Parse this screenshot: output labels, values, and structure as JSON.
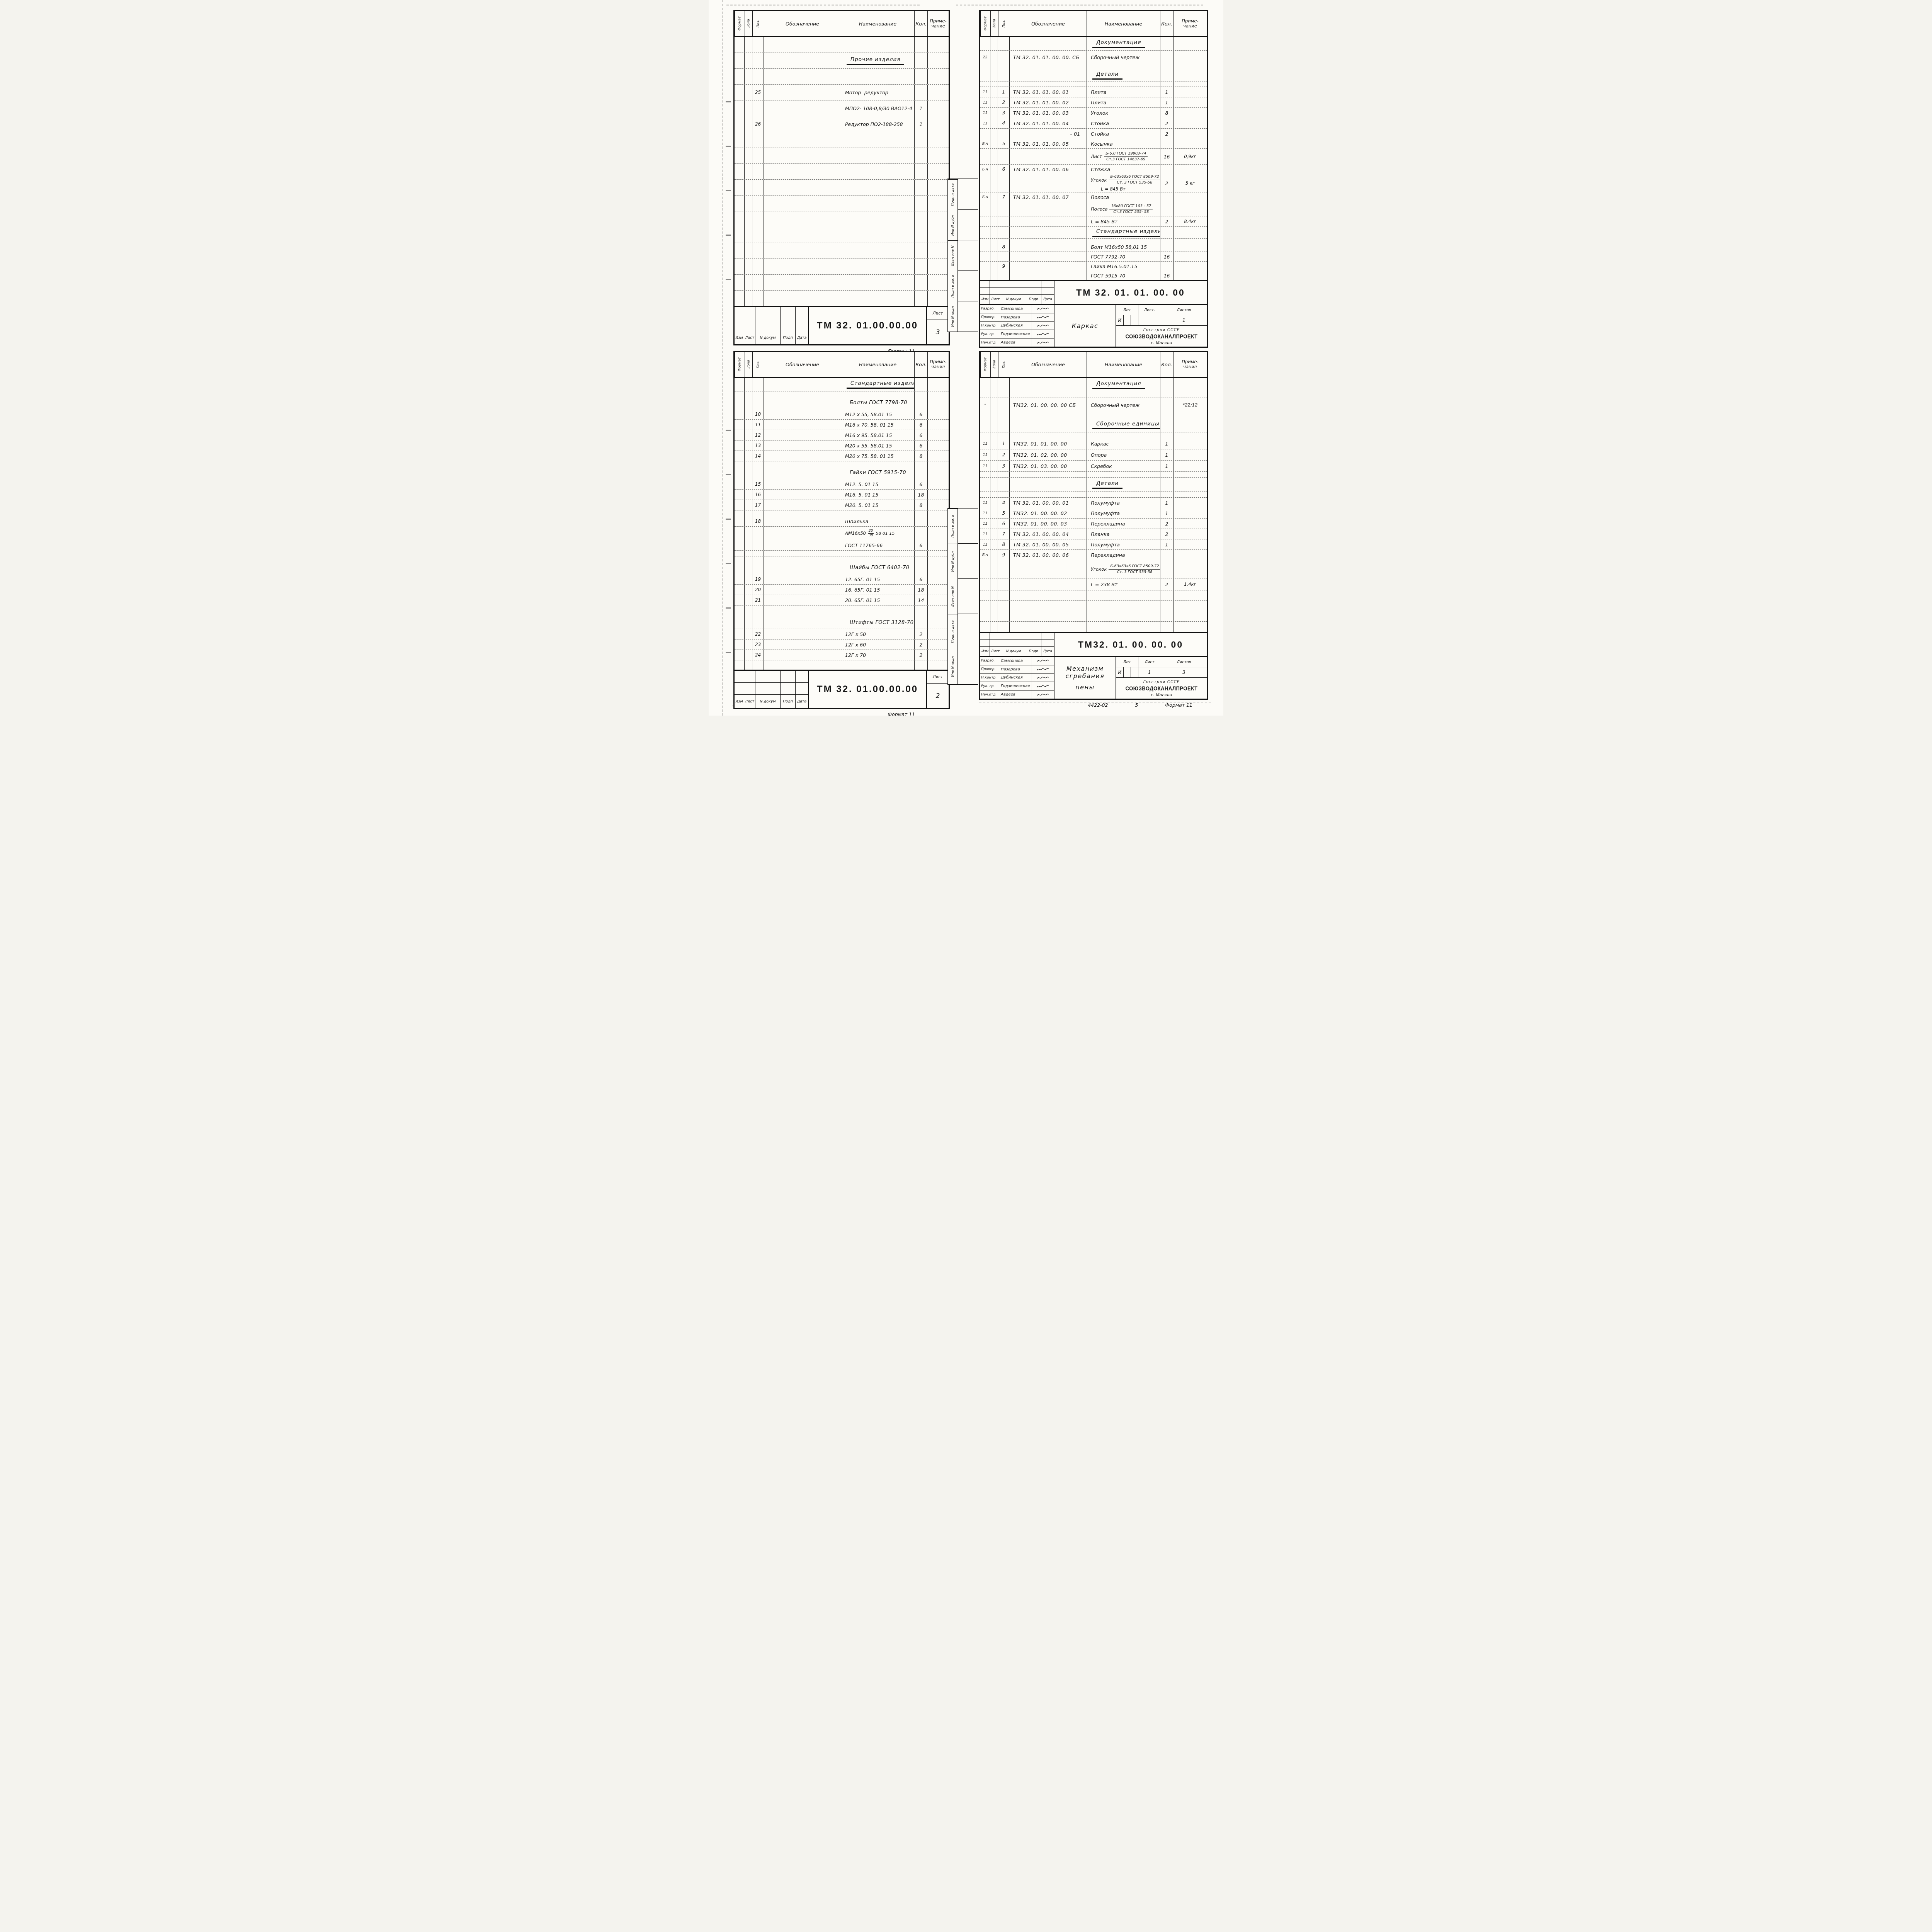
{
  "columns": {
    "format": "Формат",
    "zone": "Зона",
    "pos": "Поз.",
    "designation": "Обозначение",
    "name": "Наименование",
    "qty": "Кол.",
    "note_line1": "Приме-",
    "note_line2": "чание"
  },
  "tb_labels": {
    "izm": "Изм",
    "list": "Лист",
    "ndokum": "N докум",
    "podp": "Подп",
    "data": "Дата",
    "lit": "Лит",
    "list2": "Лист.",
    "listov": "Листов"
  },
  "org": {
    "line1": "Госстрои СССР",
    "stamp": "СОЮЗВОДОКАНАЛПРОЕКТ",
    "city": "г. Москва"
  },
  "sidebar": {
    "labels": [
      "Подп и дата",
      "Инв N дубл",
      "Взам инв N",
      "Подп и дата",
      "Инв N подл"
    ]
  },
  "tables": {
    "tl": {
      "doc_number": "ТМ 32. 01.00.00.00",
      "sheet": "3",
      "format_note": "Формат 11",
      "rows": [
        {
          "h": 40
        },
        {
          "h": 40,
          "sec": "u",
          "n": "Прочие изделия"
        },
        {
          "h": 40
        },
        {
          "h": 40,
          "p": "25",
          "n": "Мотор -редуктор"
        },
        {
          "h": 40,
          "n": "МПО2- 108-0,8/30 ВАО12-4",
          "k": "1"
        },
        {
          "h": 40,
          "p": "26",
          "n": "Редуктор ПО2-188-258",
          "k": "1"
        },
        {
          "h": 40
        },
        {
          "h": 40
        },
        {
          "h": 40
        },
        {
          "h": 40
        },
        {
          "h": 40
        },
        {
          "h": 40
        },
        {
          "h": 40
        },
        {
          "h": 40
        },
        {
          "h": 40
        },
        {
          "h": 40
        },
        {
          "h": 40
        }
      ]
    },
    "tr": {
      "doc_number": "ТМ 32. 01. 01. 00. 00",
      "title": "Каркас",
      "lit": "И",
      "sheet": "",
      "sheets": "1",
      "format_note": "Формат 11",
      "signers": [
        {
          "role": "Разраб.",
          "name": "Самсонова"
        },
        {
          "role": "Провер.",
          "name": "Назарова"
        },
        {
          "role": "Н.контр.",
          "name": "Дубинская"
        },
        {
          "role": "Рук. гр.",
          "name": "Годзишевская"
        },
        {
          "role": "Нач.отд.",
          "name": "Авдеев"
        }
      ],
      "rows": [
        {
          "h": 34,
          "sec": "u",
          "n": "Документация"
        },
        {
          "h": 34,
          "f": "22",
          "o": "ТМ 32. 01. 01. 00. 00. СБ",
          "n": "Сборочный чертеж"
        },
        {
          "h": 12
        },
        {
          "h": 32,
          "sec": "u",
          "n": "Детали"
        },
        {
          "h": 12
        },
        {
          "h": 26,
          "f": "11",
          "p": "1",
          "o": "ТМ 32. 01. 01. 00. 01",
          "n": "Плита",
          "k": "1"
        },
        {
          "h": 26,
          "f": "11",
          "p": "2",
          "o": "ТМ 32. 01. 01. 00. 02",
          "n": "Плита",
          "k": "1"
        },
        {
          "h": 26,
          "f": "11",
          "p": "3",
          "o": "ТМ 32. 01. 01. 00. 03",
          "n": "Уголок",
          "k": "8"
        },
        {
          "h": 26,
          "f": "11",
          "p": "4",
          "o": "ТМ 32. 01. 01. 00. 04",
          "n": "Стойка",
          "k": "2"
        },
        {
          "h": 26,
          "o": "- 01",
          "o_right": true,
          "n": "Стойка",
          "k": "2"
        },
        {
          "h": 24,
          "f": "Б.ч",
          "p": "5",
          "o": "ТМ 32. 01. 01. 00. 05",
          "n": "Косынка"
        },
        {
          "h": 40,
          "mfrac": {
            "pre": "Лист",
            "top": "Б-6,0 ГОСТ 19903-74",
            "bot": "Ст.3 ГОСТ 14637-69"
          },
          "k": "16",
          "pr": "0,9кг"
        },
        {
          "h": 24,
          "f": "Б.ч",
          "p": "6",
          "o": "ТМ 32. 01. 01. 00. 06",
          "n": "Стяжка"
        },
        {
          "h": 46,
          "mfrac": {
            "pre": "Уголок",
            "top": "Б-63х63х6 ГОСТ 8509-72",
            "bot": "Ст. 3 ГОСТ 535-58"
          },
          "extra": "L = 845 Вт",
          "k": "2",
          "pr": "5 кг"
        },
        {
          "h": 24,
          "f": "Б.ч",
          "p": "7",
          "o": "ТМ 32. 01. 01. 00. 07",
          "n": "Полоса"
        },
        {
          "h": 36,
          "mfrac": {
            "pre": "Полоса",
            "top": "16х80 ГОСТ 103 - 57",
            "bot": "Ст.3 ГОСТ 535- 58"
          }
        },
        {
          "h": 26,
          "n": "L = 845 Вт",
          "k": "2",
          "pr": "8.4кг"
        },
        {
          "h": 30,
          "sec": "u",
          "n": "Стандартные изделия"
        },
        {
          "h": 8
        },
        {
          "h": 24,
          "p": "8",
          "n": "Болт М16х50 58,01 15"
        },
        {
          "h": 24,
          "n": "ГОСТ 7792-70",
          "k": "16"
        },
        {
          "h": 24,
          "p": "9",
          "n": "Гайка М16.5.01.15"
        },
        {
          "h": 22,
          "n": "ГОСТ 5915-70",
          "k": "16"
        }
      ]
    },
    "bl": {
      "doc_number": "ТМ 32. 01.00.00.00",
      "sheet": "2",
      "format_note": "Формат 11",
      "rows": [
        {
          "h": 34,
          "sec": "u",
          "n": "Стандартные изделия"
        },
        {
          "h": 14
        },
        {
          "h": 30,
          "sub": true,
          "n": "Болты ГОСТ 7798-70"
        },
        {
          "h": 26,
          "p": "10",
          "n": "М12 х 55, 58.01 15",
          "k": "6"
        },
        {
          "h": 26,
          "p": "11",
          "n": "М16 х 70. 58. 01 15",
          "k": "6"
        },
        {
          "h": 26,
          "p": "12",
          "n": "М16 х 95. 58.01 15",
          "k": "6"
        },
        {
          "h": 26,
          "p": "13",
          "n": "М20 х 55. 58.01 15",
          "k": "6"
        },
        {
          "h": 26,
          "p": "14",
          "n": "М20 х 75. 58. 01 15",
          "k": "8"
        },
        {
          "h": 14
        },
        {
          "h": 30,
          "sub": true,
          "n": "Гайки ГОСТ 5915-70"
        },
        {
          "h": 26,
          "p": "15",
          "n": "М12. 5. 01 15",
          "k": "6"
        },
        {
          "h": 26,
          "p": "16",
          "n": "М16. 5. 01 15",
          "k": "18"
        },
        {
          "h": 26,
          "p": "17",
          "n": "М20. 5. 01 15",
          "k": "8"
        },
        {
          "h": 14
        },
        {
          "h": 26,
          "p": "18",
          "n": "Шпилька"
        },
        {
          "h": 34,
          "nfrac": {
            "pre": "АМ16х50",
            "top": "20",
            "bot": "38",
            "suf": "58 01 15"
          }
        },
        {
          "h": 26,
          "n": "ГОСТ 11765-66",
          "k": "6"
        },
        {
          "h": 14
        },
        {
          "h": 14
        },
        {
          "h": 30,
          "sub": true,
          "n": "Шайбы ГОСТ 6402-70"
        },
        {
          "h": 26,
          "p": "19",
          "n": "12. 65Г. 01 15",
          "k": "6"
        },
        {
          "h": 26,
          "p": "20",
          "n": "16. 65Г. 01 15",
          "k": "18"
        },
        {
          "h": 26,
          "p": "21",
          "n": "20. 65Г. 01 15",
          "k": "14"
        },
        {
          "h": 14
        },
        {
          "h": 14
        },
        {
          "h": 30,
          "sub": true,
          "n": "Штифты ГОСТ 3128-70"
        },
        {
          "h": 26,
          "p": "22",
          "n": "12Г х 50",
          "k": "2"
        },
        {
          "h": 26,
          "p": "23",
          "n": "12Г х 60",
          "k": "2"
        },
        {
          "h": 26,
          "p": "24",
          "n": "12Г х 70",
          "k": "2"
        },
        {
          "h": 24
        }
      ]
    },
    "br": {
      "doc_number": "ТМ32. 01. 00. 00. 00",
      "title_line1": "Механизм сгребания",
      "title_line2": "пены",
      "lit": "И",
      "sheet": "1",
      "sheets": "3",
      "footer_code": "4422-02",
      "footer_num": "5",
      "format_note": "Формат 11",
      "signers": [
        {
          "role": "Разраб.",
          "name": "Самсонова"
        },
        {
          "role": "Провер.",
          "name": "Назарова"
        },
        {
          "role": "Н.контр.",
          "name": "Дубинская"
        },
        {
          "role": "Рук. гр.",
          "name": "Годзишевская"
        },
        {
          "role": "Нач.отд.",
          "name": "Авдеев"
        }
      ],
      "rows": [
        {
          "h": 36,
          "sec": "u",
          "n": "Документация"
        },
        {
          "h": 14
        },
        {
          "h": 36,
          "f": "*",
          "o": "ТМ32. 01. 00. 00. 00 СБ",
          "n": "Сборочный чертеж",
          "pr": "*22;12"
        },
        {
          "h": 14
        },
        {
          "h": 36,
          "sec": "u",
          "n": "Сборочные единицы"
        },
        {
          "h": 14
        },
        {
          "h": 28,
          "f": "11",
          "p": "1",
          "o": "ТМ32. 01. 01. 00. 00",
          "n": "Каркас",
          "k": "1"
        },
        {
          "h": 28,
          "f": "11",
          "p": "2",
          "o": "ТМ32. 01. 02. 00. 00",
          "n": "Опора",
          "k": "1"
        },
        {
          "h": 28,
          "f": "11",
          "p": "3",
          "o": "ТМ32. 01. 03. 00. 00",
          "n": "Скребок",
          "k": "1"
        },
        {
          "h": 14
        },
        {
          "h": 36,
          "sec": "u",
          "n": "Детали"
        },
        {
          "h": 14
        },
        {
          "h": 26,
          "f": "11",
          "p": "4",
          "o": "ТМ 32. 01. 00. 00. 01",
          "n": "Полумуфта",
          "k": "1"
        },
        {
          "h": 26,
          "f": "11",
          "p": "5",
          "o": "ТМ32. 01. 00. 00. 02",
          "n": "Полумуфта",
          "k": "1"
        },
        {
          "h": 26,
          "f": "11",
          "p": "6",
          "o": "ТМ32. 01. 00. 00. 03",
          "n": "Перекладина",
          "k": "2"
        },
        {
          "h": 26,
          "f": "11",
          "p": "7",
          "o": "ТМ 32. 01. 00. 00. 04",
          "n": "Планка",
          "k": "2"
        },
        {
          "h": 26,
          "f": "11",
          "p": "8",
          "o": "ТМ 32. 01. 00. 00. 05",
          "n": "Полумуфта",
          "k": "1"
        },
        {
          "h": 26,
          "f": "Б.ч",
          "p": "9",
          "o": "ТМ 32. 01. 00. 00. 06",
          "n": "Перекладина"
        },
        {
          "h": 46,
          "mfrac": {
            "pre": "Уголок",
            "top": "Б-63х63х6 ГОСТ 8509-72",
            "bot": "Ст. 3 ГОСТ 535-58"
          }
        },
        {
          "h": 30,
          "n": "L = 238 Вт",
          "k": "2",
          "pr": "1.4кг"
        },
        {
          "h": 26
        },
        {
          "h": 26
        },
        {
          "h": 26
        },
        {
          "h": 26
        }
      ]
    }
  }
}
